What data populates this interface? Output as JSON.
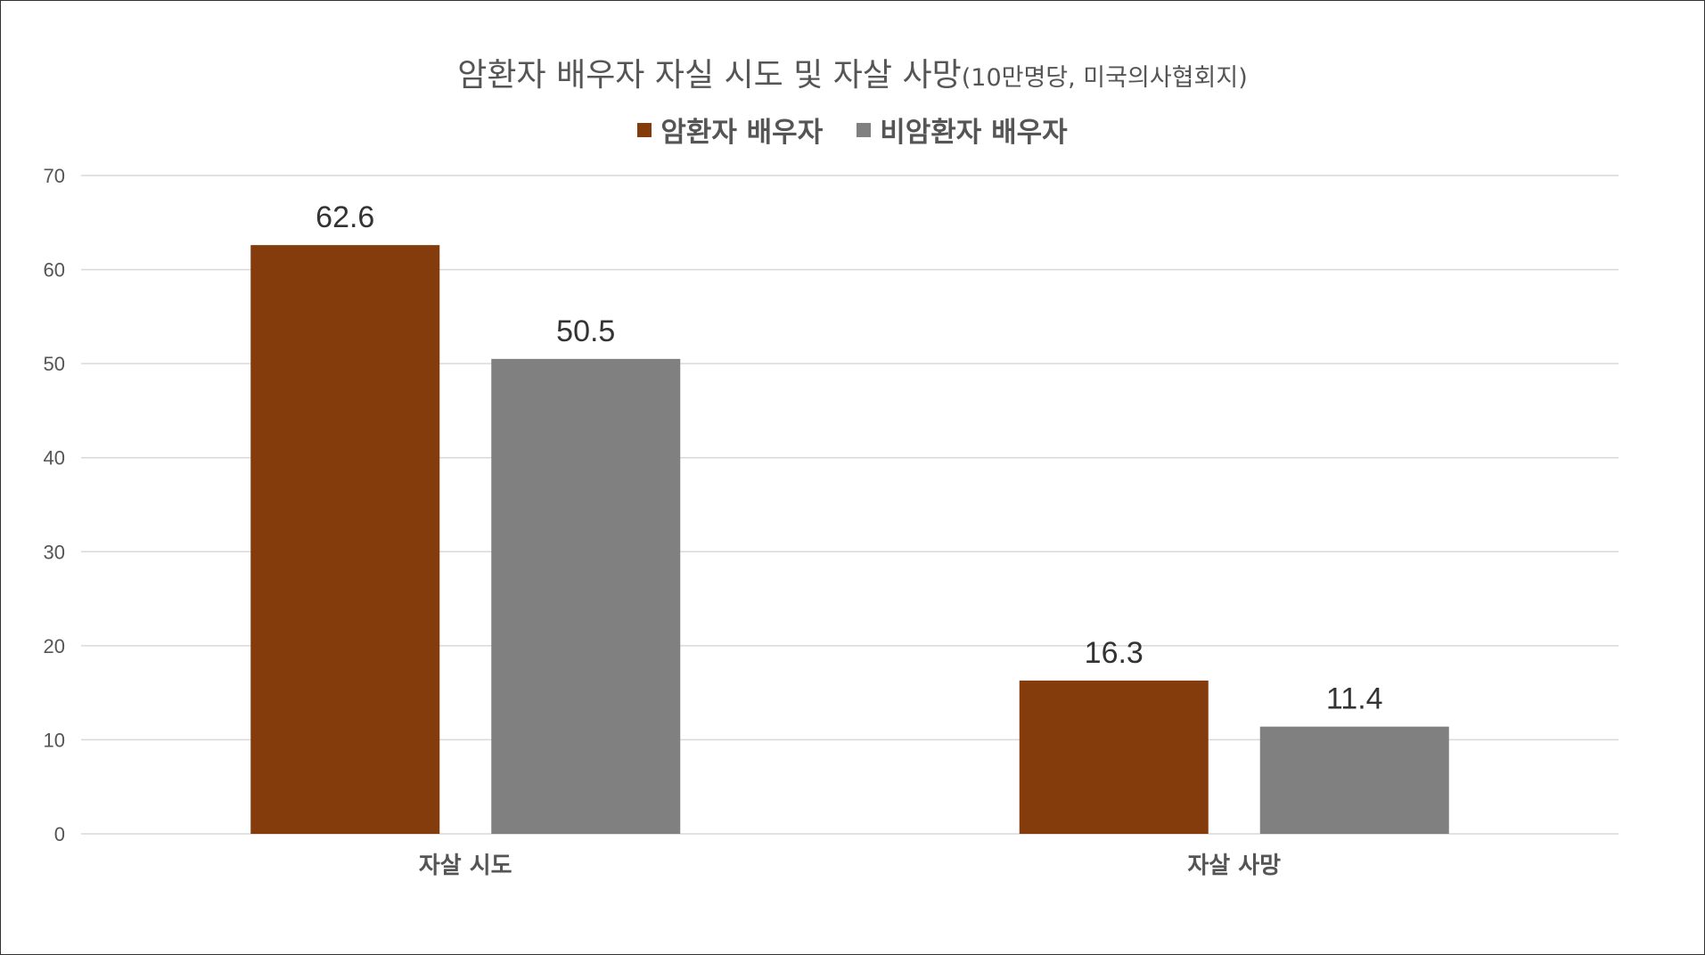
{
  "chart_data": {
    "type": "bar",
    "title": "암환자 배우자 자실 시도 및 자살 사망",
    "subtitle": "(10만명당, 미국의사협회지)",
    "categories": [
      "자살 시도",
      "자살 사망"
    ],
    "series": [
      {
        "name": "암환자 배우자",
        "color": "#843C0C",
        "values": [
          62.6,
          16.3
        ]
      },
      {
        "name": "비암환자 배우자",
        "color": "#808080",
        "values": [
          50.5,
          11.4
        ]
      }
    ],
    "ylim": [
      0,
      70
    ],
    "yticks": [
      0,
      10,
      20,
      30,
      40,
      50,
      60,
      70
    ],
    "grid": true,
    "legend": "top-center",
    "xlabel": "",
    "ylabel": ""
  }
}
